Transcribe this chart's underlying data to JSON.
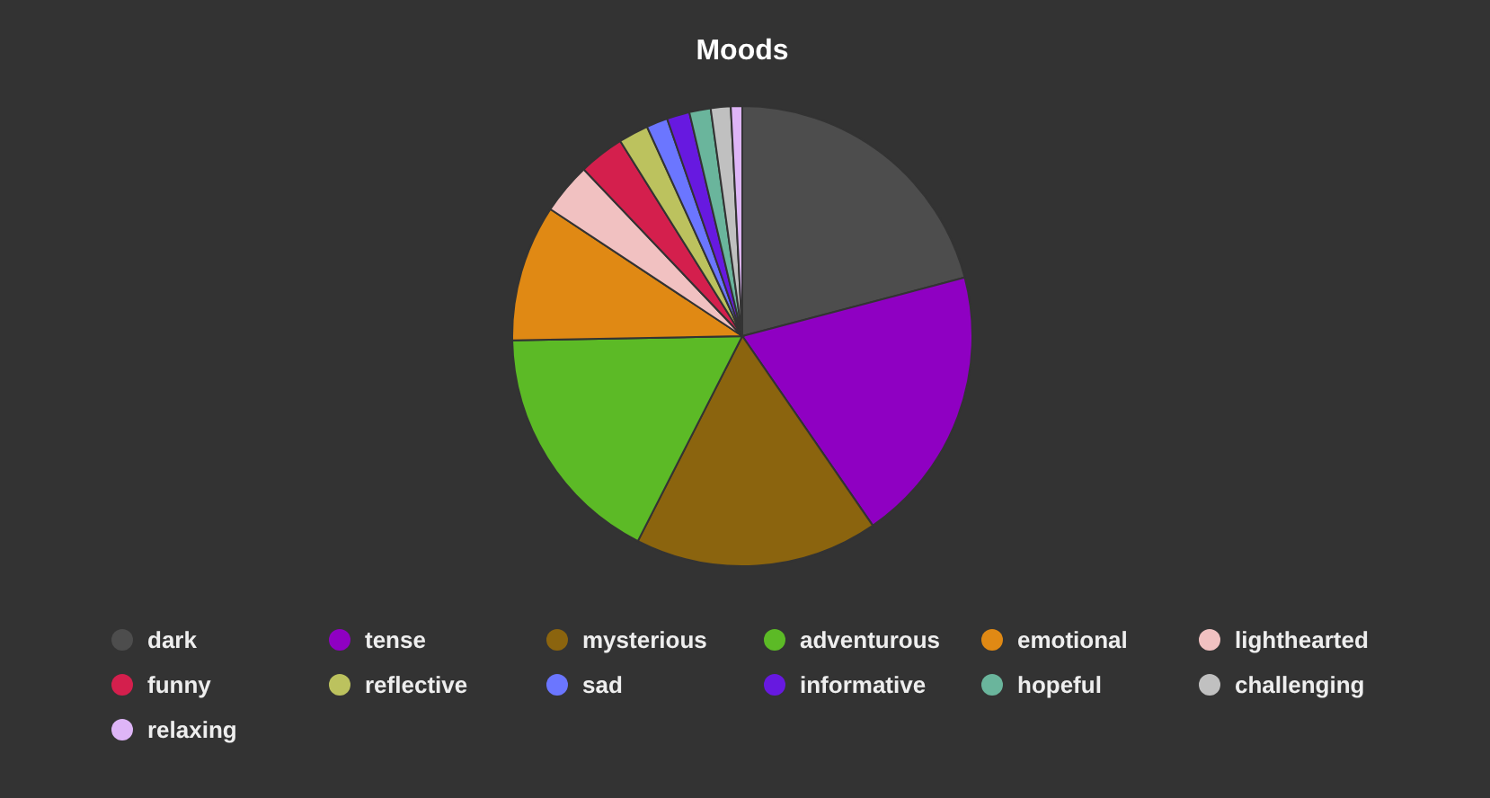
{
  "chart_data": {
    "type": "pie",
    "title": "Moods",
    "categories": [
      "dark",
      "tense",
      "mysterious",
      "adventurous",
      "emotional",
      "lighthearted",
      "funny",
      "reflective",
      "sad",
      "informative",
      "hopeful",
      "challenging",
      "relaxing"
    ],
    "values": [
      20.9,
      19.5,
      17.1,
      17.2,
      9.6,
      3.6,
      3.2,
      2.1,
      1.5,
      1.6,
      1.5,
      1.4,
      0.8
    ],
    "colors": [
      "#4d4d4d",
      "#8f00c2",
      "#8b640e",
      "#5cba26",
      "#e08914",
      "#f1c1c1",
      "#d41f4d",
      "#bcc25e",
      "#6b76ff",
      "#6719e0",
      "#6ab59c",
      "#c0c0c0",
      "#deb5f7"
    ],
    "legend": "bottom"
  }
}
